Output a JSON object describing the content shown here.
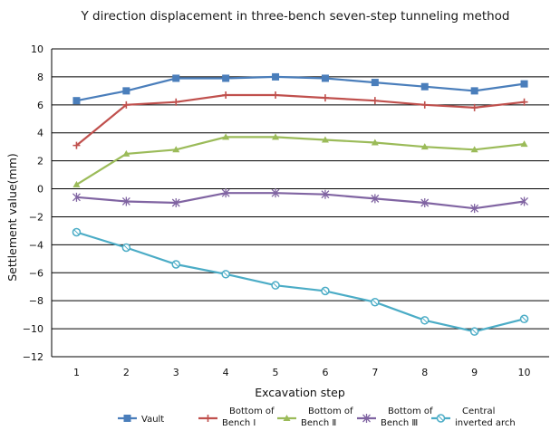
{
  "chart_data": {
    "type": "line",
    "title": "Y direction displacement in three-bench seven-step tunneling method",
    "xlabel": "Excavation step",
    "ylabel": "Settlement value(mm)",
    "x": [
      1,
      2,
      3,
      4,
      5,
      6,
      7,
      8,
      9,
      10
    ],
    "x_tick_labels": [
      "1",
      "2",
      "3",
      "4",
      "5",
      "6",
      "7",
      "8",
      "9",
      "10"
    ],
    "ylim": [
      -12,
      10
    ],
    "y_ticks": [
      10,
      8,
      6,
      4,
      2,
      0,
      -2,
      -4,
      -6,
      -8,
      -10,
      -12
    ],
    "y_tick_labels": [
      "10",
      "8",
      "6",
      "4",
      "2",
      "0",
      "−2",
      "−4",
      "−6",
      "−8",
      "−10",
      "−12"
    ],
    "grid": "horizontal",
    "legend_position": "bottom",
    "series": [
      {
        "name": "Vault",
        "legend_lines": [
          "Vault"
        ],
        "color": "#4a7ebb",
        "marker": "square",
        "values": [
          6.3,
          7.0,
          7.9,
          7.9,
          8.0,
          7.9,
          7.6,
          7.3,
          7.0,
          7.5
        ]
      },
      {
        "name": "Bottom of Bench Ⅰ",
        "legend_lines": [
          "Bottom of",
          "Bench Ⅰ"
        ],
        "color": "#c0504d",
        "marker": "plus",
        "values": [
          3.1,
          6.0,
          6.2,
          6.7,
          6.7,
          6.5,
          6.3,
          6.0,
          5.8,
          6.2
        ]
      },
      {
        "name": "Bottom of Bench Ⅱ",
        "legend_lines": [
          "Bottom of",
          "Bench Ⅱ"
        ],
        "color": "#9bbb59",
        "marker": "triangle",
        "values": [
          0.3,
          2.5,
          2.8,
          3.7,
          3.7,
          3.5,
          3.3,
          3.0,
          2.8,
          3.2
        ]
      },
      {
        "name": "Bottom of Bench Ⅲ",
        "legend_lines": [
          "Bottom of",
          "Bench Ⅲ"
        ],
        "color": "#8064a2",
        "marker": "x",
        "values": [
          -0.6,
          -0.9,
          -1.0,
          -0.3,
          -0.3,
          -0.4,
          -0.7,
          -1.0,
          -1.4,
          -0.9
        ]
      },
      {
        "name": "Central inverted arch",
        "legend_lines": [
          "Central",
          "inverted arch"
        ],
        "color": "#4bacc6",
        "marker": "circle",
        "values": [
          -3.1,
          -4.2,
          -5.4,
          -6.1,
          -6.9,
          -7.3,
          -8.1,
          -9.4,
          -10.2,
          -9.3
        ]
      }
    ]
  }
}
